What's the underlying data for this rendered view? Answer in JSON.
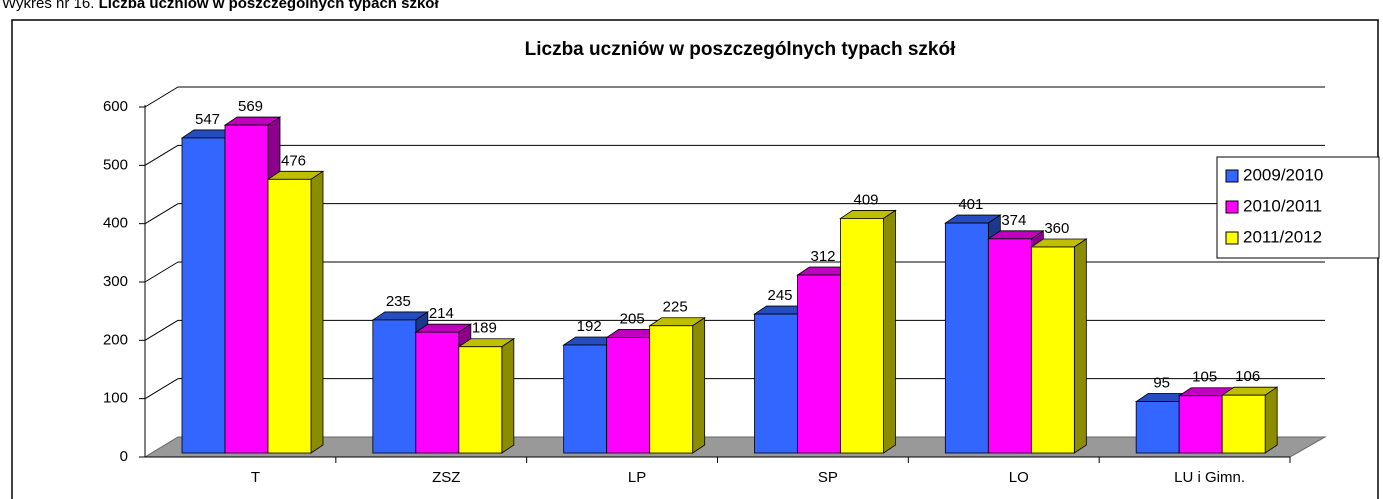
{
  "caption": {
    "label": "Wykres nr 16.",
    "title": "Liczba uczniów w poszczególnych typach szkół"
  },
  "chart_data": {
    "type": "bar3d",
    "title": "Liczba uczniów w poszczególnych typach szkół",
    "categories": [
      "T",
      "ZSZ",
      "LP",
      "SP",
      "LO",
      "LU i Gimn."
    ],
    "series": [
      {
        "name": "2009/2010",
        "color": "#3366ff",
        "values": [
          547,
          235,
          192,
          245,
          401,
          95
        ]
      },
      {
        "name": "2010/2011",
        "color": "#ff00ff",
        "values": [
          569,
          214,
          205,
          312,
          374,
          105
        ]
      },
      {
        "name": "2011/2012",
        "color": "#ffff00",
        "values": [
          476,
          189,
          225,
          409,
          360,
          106
        ]
      }
    ],
    "ylim": [
      0,
      600
    ],
    "yticks": [
      0,
      100,
      200,
      300,
      400,
      500,
      600
    ],
    "grid": true,
    "legend": "right"
  }
}
